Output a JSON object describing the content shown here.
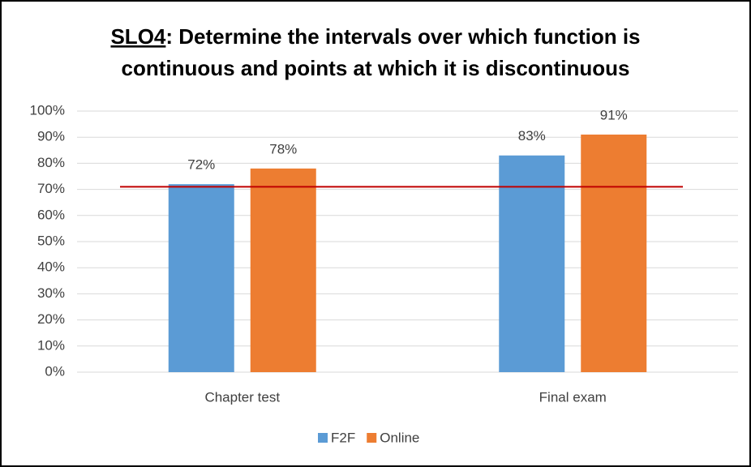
{
  "chart_data": {
    "type": "bar",
    "title_underlined": "SLO4",
    "title": [
      ": Determine the intervals over which function is",
      "continuous and points at which it is discontinuous"
    ],
    "categories": [
      "Chapter test",
      "Final exam"
    ],
    "series": [
      {
        "name": "F2F",
        "color": "#5b9bd5",
        "values": [
          72,
          83
        ],
        "value_labels": [
          "72%",
          "83%"
        ]
      },
      {
        "name": "Online",
        "color": "#ed7d31",
        "values": [
          78,
          91
        ],
        "value_labels": [
          "78%",
          "91%"
        ]
      }
    ],
    "ylim": [
      0,
      100
    ],
    "yticks": [
      {
        "value": 0,
        "label": "0%"
      },
      {
        "value": 10,
        "label": "10%"
      },
      {
        "value": 20,
        "label": "20%"
      },
      {
        "value": 30,
        "label": "30%"
      },
      {
        "value": 40,
        "label": "40%"
      },
      {
        "value": 50,
        "label": "50%"
      },
      {
        "value": 60,
        "label": "60%"
      },
      {
        "value": 70,
        "label": "70%"
      },
      {
        "value": 80,
        "label": "80%"
      },
      {
        "value": 90,
        "label": "90%"
      },
      {
        "value": 100,
        "label": "100%"
      }
    ],
    "reference_line": {
      "value": 71,
      "color": "#c00000"
    },
    "grid": true,
    "legend": "bottom"
  }
}
